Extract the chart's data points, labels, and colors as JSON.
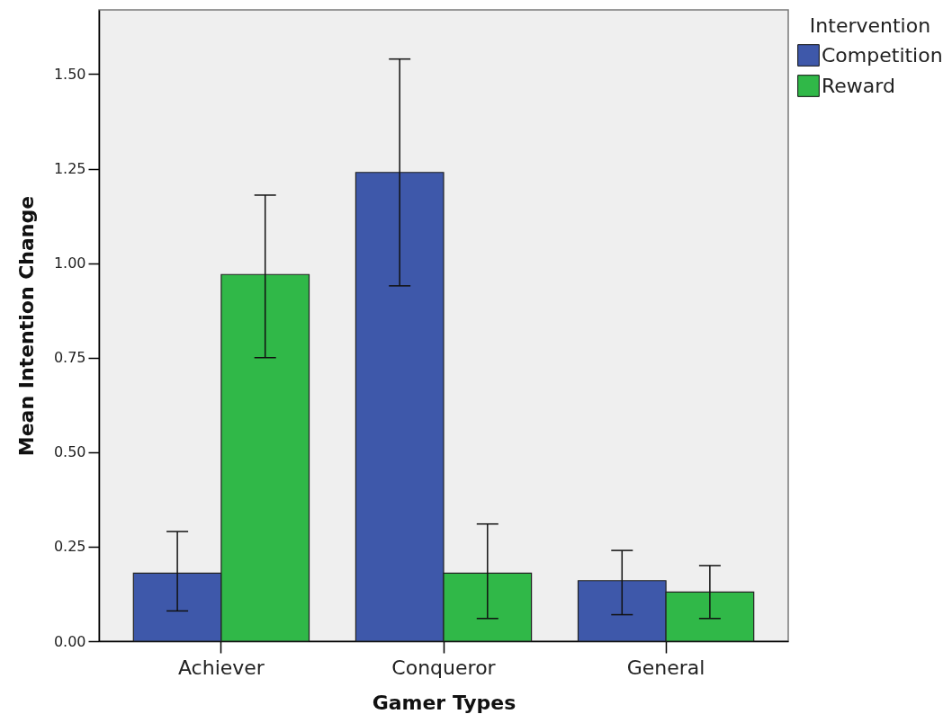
{
  "chart_data": {
    "type": "bar",
    "xlabel": "Gamer Types",
    "ylabel": "Mean Intention Change",
    "legend_title": "Intervention",
    "legend": "top right",
    "categories": [
      "Achiever",
      "Conqueror",
      "General"
    ],
    "series": [
      {
        "name": "Competition",
        "color": "#3e58aa",
        "values": [
          0.18,
          1.24,
          0.16
        ],
        "errors": [
          [
            0.08,
            0.29
          ],
          [
            0.94,
            1.54
          ],
          [
            0.07,
            0.24
          ]
        ]
      },
      {
        "name": "Reward",
        "color": "#30b848",
        "values": [
          0.97,
          0.18,
          0.13
        ],
        "errors": [
          [
            0.75,
            1.18
          ],
          [
            0.06,
            0.31
          ],
          [
            0.06,
            0.2
          ]
        ]
      }
    ],
    "ylim": [
      0,
      1.67
    ],
    "yticks": [
      {
        "value": 0,
        "label": "0.00"
      },
      {
        "value": 0.25,
        "label": "0.25"
      },
      {
        "value": 0.5,
        "label": "0.50"
      },
      {
        "value": 0.75,
        "label": "0.75"
      },
      {
        "value": 1,
        "label": "1.00"
      },
      {
        "value": 1.25,
        "label": "1.25"
      },
      {
        "value": 1.5,
        "label": "1.50"
      }
    ]
  }
}
